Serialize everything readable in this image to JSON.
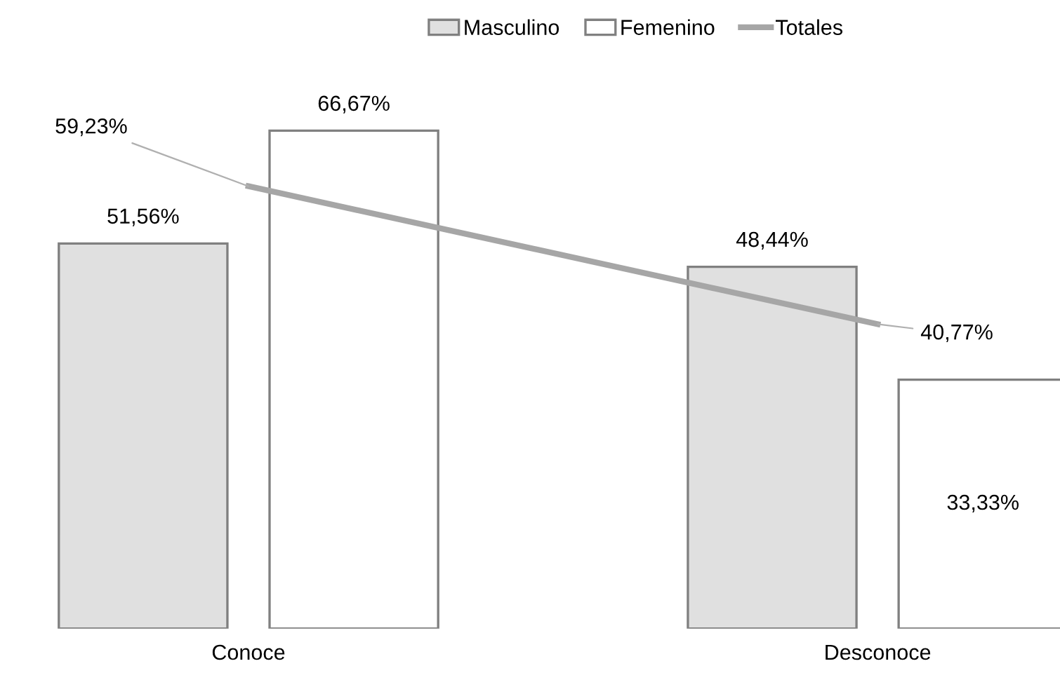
{
  "chart_data": {
    "type": "bar",
    "categories": [
      "Conoce",
      "Desconoce"
    ],
    "series": [
      {
        "name": "Masculino",
        "color": "#e0e0e0",
        "values": [
          51.56,
          48.44
        ],
        "value_labels": [
          "51,56%",
          "48,44%"
        ]
      },
      {
        "name": "Femenino",
        "color": "#ffffff",
        "values": [
          66.67,
          33.33
        ],
        "value_labels": [
          "66,67%",
          "33,33%"
        ]
      },
      {
        "name": "Totales",
        "type": "line",
        "color": "#a6a6a6",
        "values": [
          59.23,
          40.77
        ],
        "value_labels": [
          "59,23%",
          "40,77%"
        ]
      }
    ],
    "legend": "top",
    "grid": false
  }
}
